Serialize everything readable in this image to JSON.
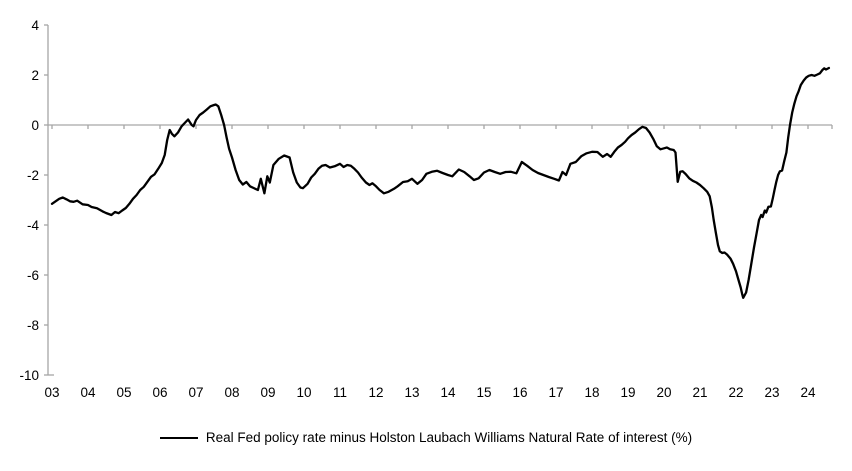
{
  "legend": {
    "label": "Real Fed policy rate minus Holston Laubach Williams Natural Rate of interest (%)"
  },
  "colors": {
    "line": "#000000",
    "axis": "#a6a6a6",
    "text": "#000000",
    "background": "#ffffff"
  },
  "chart_data": {
    "type": "line",
    "title": "",
    "xlabel": "",
    "ylabel": "",
    "xlim": [
      2003,
      2024.67
    ],
    "ylim": [
      -10,
      4
    ],
    "yticks": [
      4,
      2,
      0,
      -2,
      -4,
      -6,
      -8,
      -10
    ],
    "ytick_labels": [
      "4",
      "2",
      "0",
      "-2",
      "-4",
      "-6",
      "-8",
      "-10"
    ],
    "xticks": [
      2003,
      2004,
      2005,
      2006,
      2007,
      2008,
      2009,
      2010,
      2011,
      2012,
      2013,
      2014,
      2015,
      2016,
      2017,
      2018,
      2019,
      2020,
      2021,
      2022,
      2023,
      2024
    ],
    "xtick_labels": [
      "03",
      "04",
      "05",
      "06",
      "07",
      "08",
      "09",
      "10",
      "11",
      "12",
      "13",
      "14",
      "15",
      "16",
      "17",
      "18",
      "19",
      "20",
      "21",
      "22",
      "23",
      "24"
    ],
    "grid": "horizontal zero-line only",
    "legend_position": "bottom-center",
    "series": [
      {
        "name": "Real Fed policy rate minus Holston Laubach Williams Natural Rate of interest (%)",
        "color": "#000000",
        "points": [
          [
            2003.0,
            -3.15
          ],
          [
            2003.1,
            -3.05
          ],
          [
            2003.2,
            -2.95
          ],
          [
            2003.3,
            -2.9
          ],
          [
            2003.4,
            -2.97
          ],
          [
            2003.5,
            -3.05
          ],
          [
            2003.6,
            -3.07
          ],
          [
            2003.7,
            -3.03
          ],
          [
            2003.85,
            -3.17
          ],
          [
            2004.0,
            -3.2
          ],
          [
            2004.1,
            -3.28
          ],
          [
            2004.25,
            -3.33
          ],
          [
            2004.4,
            -3.45
          ],
          [
            2004.5,
            -3.52
          ],
          [
            2004.65,
            -3.6
          ],
          [
            2004.75,
            -3.48
          ],
          [
            2004.85,
            -3.53
          ],
          [
            2004.95,
            -3.42
          ],
          [
            2005.05,
            -3.32
          ],
          [
            2005.15,
            -3.15
          ],
          [
            2005.25,
            -2.95
          ],
          [
            2005.35,
            -2.8
          ],
          [
            2005.45,
            -2.6
          ],
          [
            2005.55,
            -2.47
          ],
          [
            2005.65,
            -2.27
          ],
          [
            2005.75,
            -2.07
          ],
          [
            2005.85,
            -1.97
          ],
          [
            2005.95,
            -1.75
          ],
          [
            2006.05,
            -1.52
          ],
          [
            2006.13,
            -1.2
          ],
          [
            2006.2,
            -0.6
          ],
          [
            2006.27,
            -0.2
          ],
          [
            2006.33,
            -0.35
          ],
          [
            2006.4,
            -0.45
          ],
          [
            2006.5,
            -0.3
          ],
          [
            2006.6,
            -0.05
          ],
          [
            2006.7,
            0.1
          ],
          [
            2006.78,
            0.22
          ],
          [
            2006.88,
            0.0
          ],
          [
            2006.93,
            -0.05
          ],
          [
            2007.0,
            0.2
          ],
          [
            2007.1,
            0.4
          ],
          [
            2007.2,
            0.5
          ],
          [
            2007.3,
            0.62
          ],
          [
            2007.4,
            0.75
          ],
          [
            2007.5,
            0.8
          ],
          [
            2007.55,
            0.82
          ],
          [
            2007.62,
            0.75
          ],
          [
            2007.7,
            0.4
          ],
          [
            2007.78,
            0.0
          ],
          [
            2007.85,
            -0.5
          ],
          [
            2007.92,
            -0.95
          ],
          [
            2008.0,
            -1.3
          ],
          [
            2008.1,
            -1.8
          ],
          [
            2008.2,
            -2.2
          ],
          [
            2008.3,
            -2.38
          ],
          [
            2008.4,
            -2.28
          ],
          [
            2008.5,
            -2.45
          ],
          [
            2008.6,
            -2.52
          ],
          [
            2008.72,
            -2.6
          ],
          [
            2008.8,
            -2.15
          ],
          [
            2008.9,
            -2.73
          ],
          [
            2008.98,
            -2.05
          ],
          [
            2009.05,
            -2.3
          ],
          [
            2009.15,
            -1.6
          ],
          [
            2009.3,
            -1.35
          ],
          [
            2009.45,
            -1.22
          ],
          [
            2009.6,
            -1.3
          ],
          [
            2009.7,
            -1.9
          ],
          [
            2009.8,
            -2.3
          ],
          [
            2009.9,
            -2.5
          ],
          [
            2009.97,
            -2.53
          ],
          [
            2010.1,
            -2.35
          ],
          [
            2010.2,
            -2.1
          ],
          [
            2010.3,
            -1.95
          ],
          [
            2010.4,
            -1.75
          ],
          [
            2010.5,
            -1.63
          ],
          [
            2010.6,
            -1.6
          ],
          [
            2010.72,
            -1.7
          ],
          [
            2010.85,
            -1.65
          ],
          [
            2011.0,
            -1.55
          ],
          [
            2011.1,
            -1.68
          ],
          [
            2011.2,
            -1.6
          ],
          [
            2011.3,
            -1.63
          ],
          [
            2011.4,
            -1.75
          ],
          [
            2011.5,
            -1.9
          ],
          [
            2011.6,
            -2.1
          ],
          [
            2011.72,
            -2.3
          ],
          [
            2011.82,
            -2.4
          ],
          [
            2011.9,
            -2.33
          ],
          [
            2012.0,
            -2.45
          ],
          [
            2012.1,
            -2.6
          ],
          [
            2012.22,
            -2.73
          ],
          [
            2012.35,
            -2.67
          ],
          [
            2012.5,
            -2.55
          ],
          [
            2012.6,
            -2.45
          ],
          [
            2012.75,
            -2.28
          ],
          [
            2012.88,
            -2.25
          ],
          [
            2013.0,
            -2.15
          ],
          [
            2013.15,
            -2.35
          ],
          [
            2013.28,
            -2.2
          ],
          [
            2013.4,
            -1.95
          ],
          [
            2013.55,
            -1.87
          ],
          [
            2013.7,
            -1.83
          ],
          [
            2013.85,
            -1.92
          ],
          [
            2014.0,
            -2.0
          ],
          [
            2014.12,
            -2.05
          ],
          [
            2014.3,
            -1.78
          ],
          [
            2014.45,
            -1.88
          ],
          [
            2014.6,
            -2.05
          ],
          [
            2014.72,
            -2.2
          ],
          [
            2014.85,
            -2.13
          ],
          [
            2015.0,
            -1.9
          ],
          [
            2015.15,
            -1.8
          ],
          [
            2015.3,
            -1.88
          ],
          [
            2015.45,
            -1.95
          ],
          [
            2015.6,
            -1.88
          ],
          [
            2015.75,
            -1.87
          ],
          [
            2015.9,
            -1.93
          ],
          [
            2016.05,
            -1.48
          ],
          [
            2016.2,
            -1.63
          ],
          [
            2016.35,
            -1.8
          ],
          [
            2016.5,
            -1.92
          ],
          [
            2016.65,
            -2.0
          ],
          [
            2016.8,
            -2.08
          ],
          [
            2016.95,
            -2.15
          ],
          [
            2017.08,
            -2.22
          ],
          [
            2017.18,
            -1.88
          ],
          [
            2017.28,
            -2.0
          ],
          [
            2017.4,
            -1.55
          ],
          [
            2017.55,
            -1.48
          ],
          [
            2017.7,
            -1.25
          ],
          [
            2017.85,
            -1.13
          ],
          [
            2018.0,
            -1.07
          ],
          [
            2018.15,
            -1.08
          ],
          [
            2018.3,
            -1.27
          ],
          [
            2018.42,
            -1.16
          ],
          [
            2018.52,
            -1.27
          ],
          [
            2018.62,
            -1.07
          ],
          [
            2018.72,
            -0.9
          ],
          [
            2018.82,
            -0.8
          ],
          [
            2018.92,
            -0.67
          ],
          [
            2019.0,
            -0.53
          ],
          [
            2019.1,
            -0.4
          ],
          [
            2019.2,
            -0.3
          ],
          [
            2019.3,
            -0.17
          ],
          [
            2019.4,
            -0.07
          ],
          [
            2019.5,
            -0.12
          ],
          [
            2019.6,
            -0.3
          ],
          [
            2019.7,
            -0.55
          ],
          [
            2019.8,
            -0.85
          ],
          [
            2019.9,
            -0.97
          ],
          [
            2020.0,
            -0.93
          ],
          [
            2020.08,
            -0.9
          ],
          [
            2020.17,
            -0.97
          ],
          [
            2020.27,
            -1.0
          ],
          [
            2020.32,
            -1.1
          ],
          [
            2020.38,
            -2.27
          ],
          [
            2020.45,
            -1.87
          ],
          [
            2020.52,
            -1.85
          ],
          [
            2020.6,
            -1.96
          ],
          [
            2020.7,
            -2.13
          ],
          [
            2020.8,
            -2.23
          ],
          [
            2020.9,
            -2.3
          ],
          [
            2021.0,
            -2.4
          ],
          [
            2021.1,
            -2.53
          ],
          [
            2021.2,
            -2.67
          ],
          [
            2021.27,
            -2.85
          ],
          [
            2021.33,
            -3.3
          ],
          [
            2021.38,
            -3.8
          ],
          [
            2021.44,
            -4.3
          ],
          [
            2021.5,
            -4.8
          ],
          [
            2021.55,
            -5.05
          ],
          [
            2021.62,
            -5.12
          ],
          [
            2021.68,
            -5.1
          ],
          [
            2021.75,
            -5.18
          ],
          [
            2021.85,
            -5.35
          ],
          [
            2021.92,
            -5.55
          ],
          [
            2022.0,
            -5.85
          ],
          [
            2022.07,
            -6.2
          ],
          [
            2022.13,
            -6.5
          ],
          [
            2022.17,
            -6.75
          ],
          [
            2022.2,
            -6.91
          ],
          [
            2022.28,
            -6.7
          ],
          [
            2022.35,
            -6.2
          ],
          [
            2022.42,
            -5.6
          ],
          [
            2022.5,
            -4.9
          ],
          [
            2022.57,
            -4.35
          ],
          [
            2022.64,
            -3.8
          ],
          [
            2022.7,
            -3.6
          ],
          [
            2022.74,
            -3.68
          ],
          [
            2022.8,
            -3.42
          ],
          [
            2022.84,
            -3.5
          ],
          [
            2022.9,
            -3.27
          ],
          [
            2022.97,
            -3.26
          ],
          [
            2023.02,
            -2.95
          ],
          [
            2023.07,
            -2.6
          ],
          [
            2023.12,
            -2.27
          ],
          [
            2023.17,
            -2.0
          ],
          [
            2023.22,
            -1.85
          ],
          [
            2023.28,
            -1.82
          ],
          [
            2023.34,
            -1.45
          ],
          [
            2023.4,
            -1.1
          ],
          [
            2023.45,
            -0.5
          ],
          [
            2023.5,
            0.0
          ],
          [
            2023.56,
            0.5
          ],
          [
            2023.62,
            0.85
          ],
          [
            2023.68,
            1.15
          ],
          [
            2023.74,
            1.35
          ],
          [
            2023.8,
            1.6
          ],
          [
            2023.88,
            1.78
          ],
          [
            2023.95,
            1.9
          ],
          [
            2024.02,
            1.97
          ],
          [
            2024.1,
            2.0
          ],
          [
            2024.18,
            1.97
          ],
          [
            2024.26,
            2.02
          ],
          [
            2024.33,
            2.07
          ],
          [
            2024.4,
            2.2
          ],
          [
            2024.45,
            2.27
          ],
          [
            2024.5,
            2.22
          ],
          [
            2024.58,
            2.28
          ]
        ]
      }
    ]
  }
}
